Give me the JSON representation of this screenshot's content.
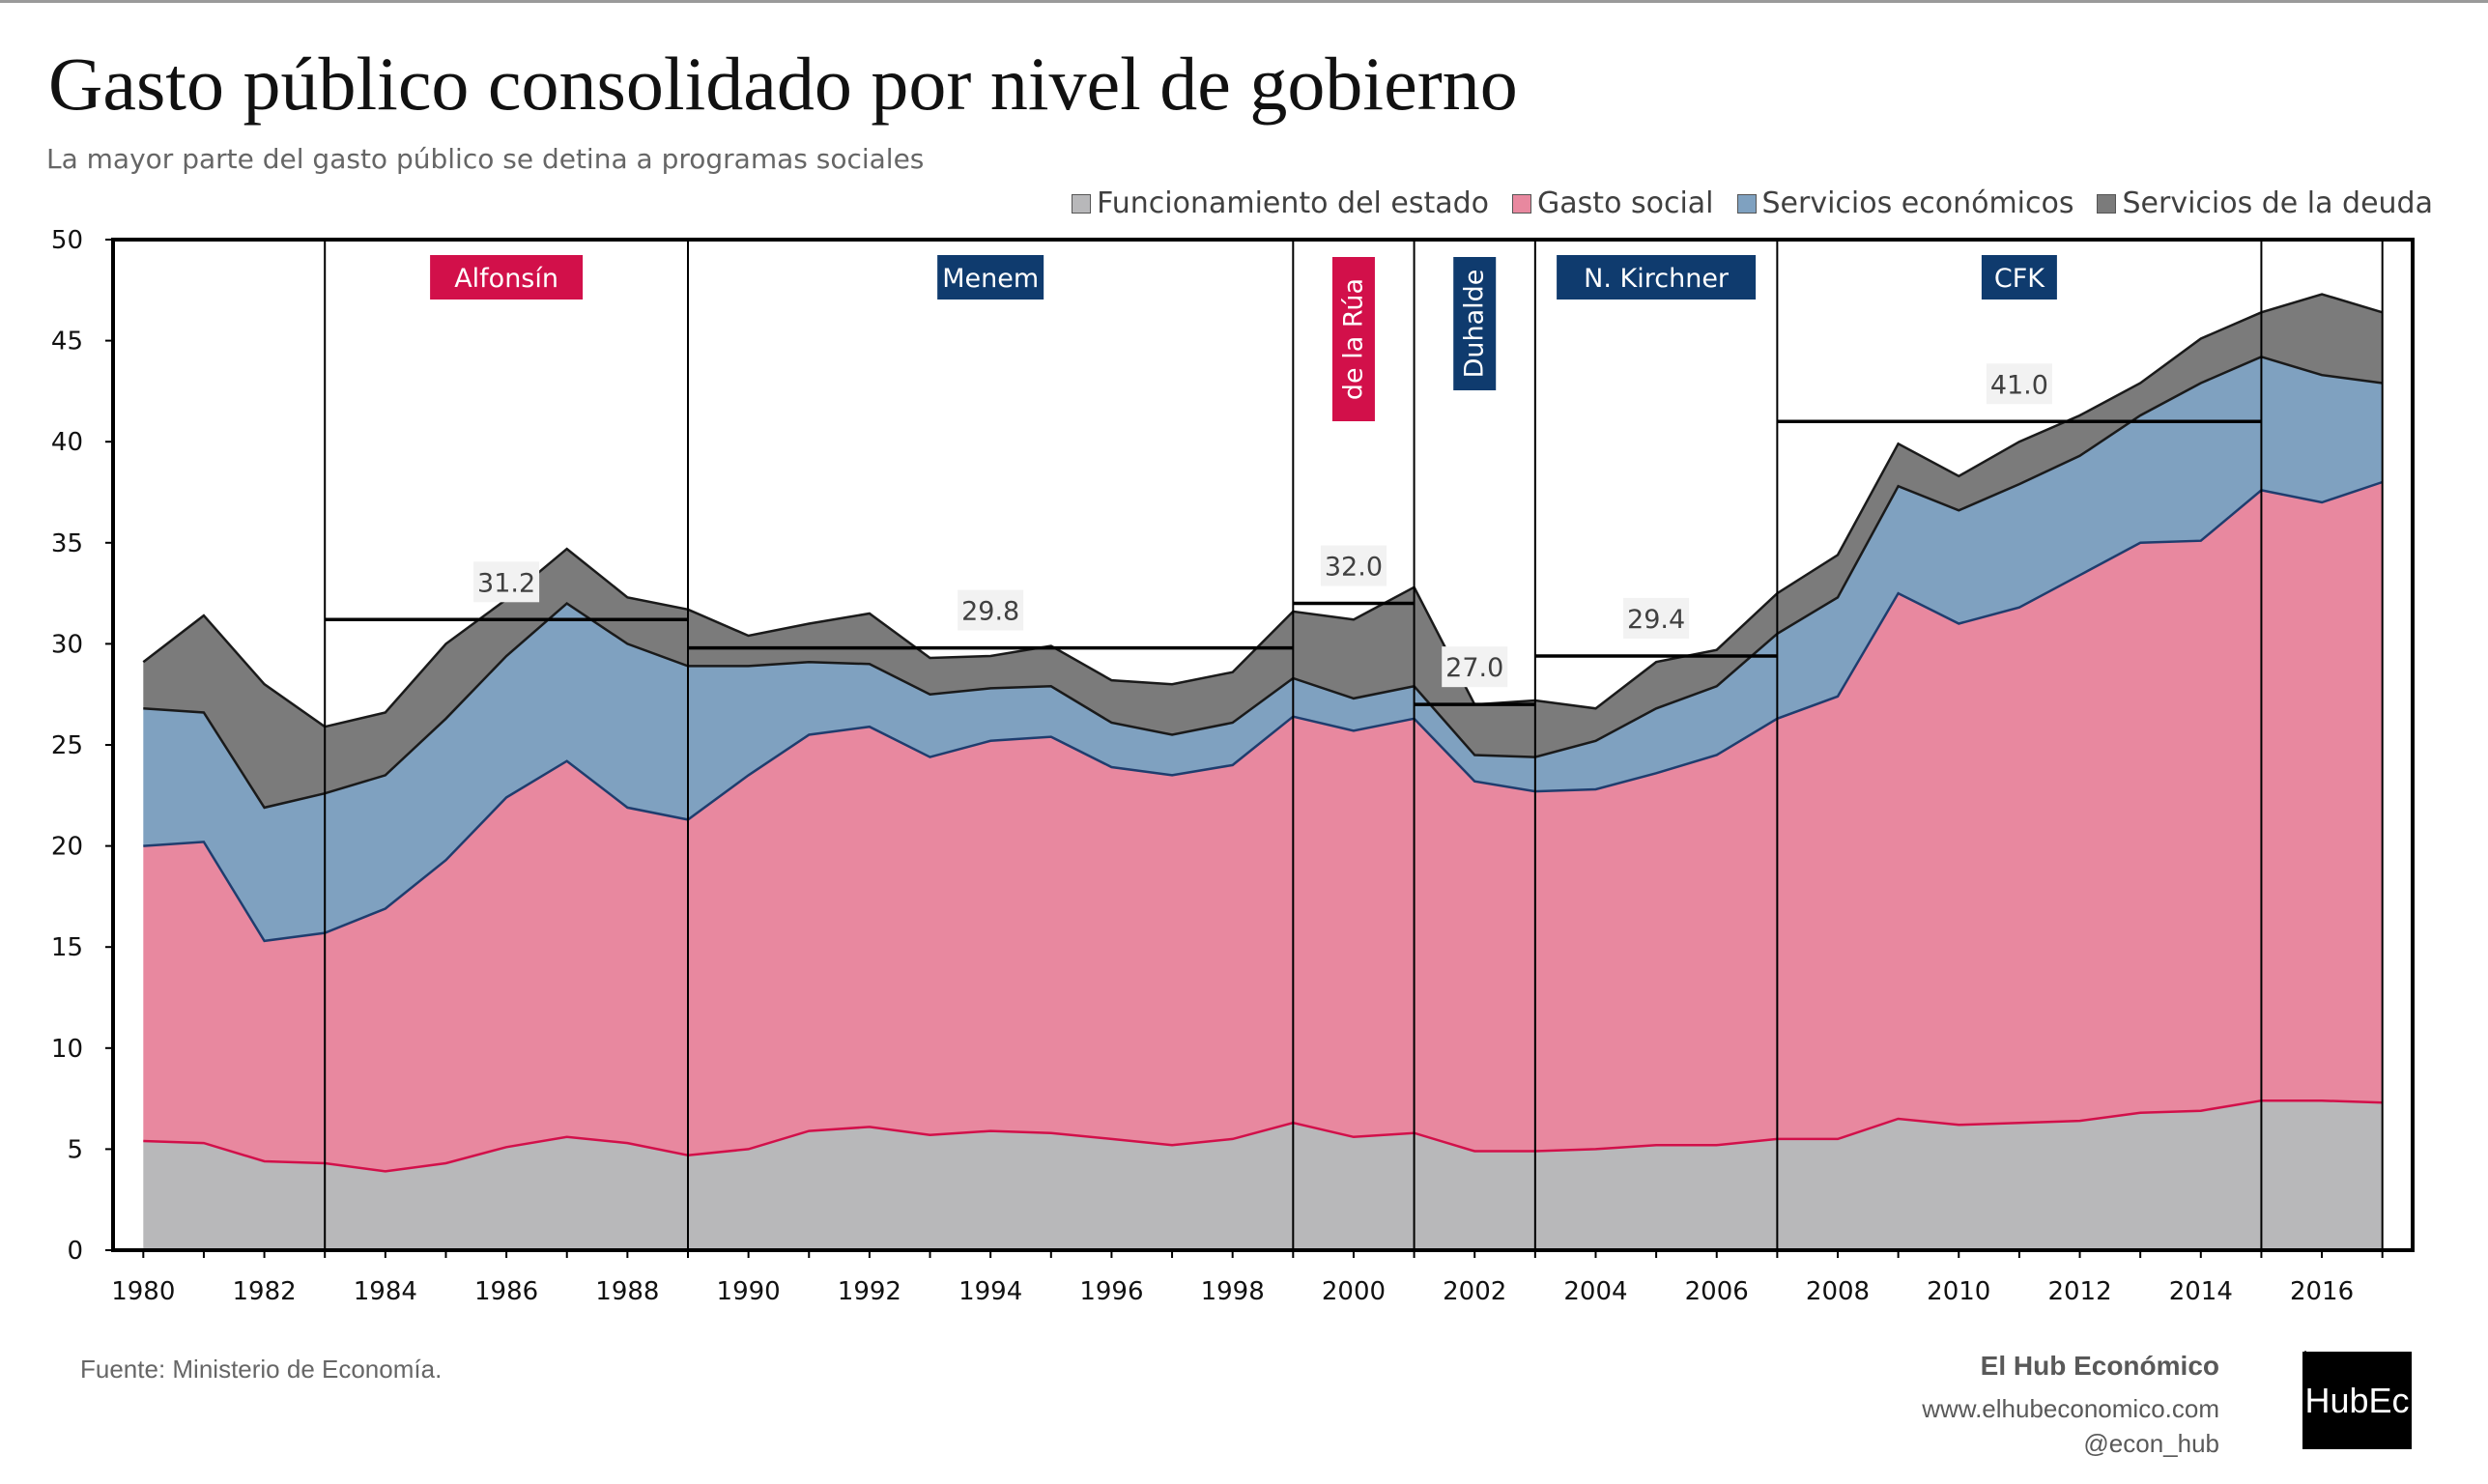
{
  "header": {
    "title": "Gasto público consolidado por nivel de gobierno",
    "subtitle": "La mayor parte del gasto público se detina a programas sociales"
  },
  "legend": [
    {
      "label": "Funcionamiento del estado",
      "color": "#b8b8ba"
    },
    {
      "label": "Gasto social",
      "color": "#e8889f"
    },
    {
      "label": "Servicios económicos",
      "color": "#7fa1c0"
    },
    {
      "label": "Servicios de la deuda",
      "color": "#7b7b7b"
    }
  ],
  "chart_data": {
    "type": "area",
    "stacked": true,
    "x": [
      1980,
      1981,
      1982,
      1983,
      1984,
      1985,
      1986,
      1987,
      1988,
      1989,
      1990,
      1991,
      1992,
      1993,
      1994,
      1995,
      1996,
      1997,
      1998,
      1999,
      2000,
      2001,
      2002,
      2003,
      2004,
      2005,
      2006,
      2007,
      2008,
      2009,
      2010,
      2011,
      2012,
      2013,
      2014,
      2015,
      2016,
      2017
    ],
    "x_tick_labels": [
      "1980",
      "1982",
      "1984",
      "1986",
      "1988",
      "1990",
      "1992",
      "1994",
      "1996",
      "1998",
      "2000",
      "2002",
      "2004",
      "2006",
      "2008",
      "2010",
      "2012",
      "2014",
      "2016"
    ],
    "y_tick_labels": [
      "0",
      "5",
      "10",
      "15",
      "20",
      "25",
      "30",
      "35",
      "40",
      "45",
      "50"
    ],
    "ylim": [
      0,
      50
    ],
    "xlim": [
      1979.5,
      2017.5
    ],
    "series": [
      {
        "name": "Funcionamiento del estado",
        "color": "#b8b8ba",
        "line_color": "#d2104a",
        "values": [
          5.4,
          5.3,
          4.4,
          4.3,
          3.9,
          4.3,
          5.1,
          5.6,
          5.3,
          4.7,
          5.0,
          5.9,
          6.1,
          5.7,
          5.9,
          5.8,
          5.5,
          5.2,
          5.5,
          6.3,
          5.6,
          5.8,
          4.9,
          4.9,
          5.0,
          5.2,
          5.2,
          5.5,
          5.5,
          6.5,
          6.2,
          6.3,
          6.4,
          6.8,
          6.9,
          7.4,
          7.4,
          7.3
        ]
      },
      {
        "name": "Gasto social",
        "color": "#e8889f",
        "line_color": "#1f3d6e",
        "values": [
          14.6,
          14.9,
          10.9,
          11.4,
          13.0,
          15.0,
          17.3,
          18.6,
          16.6,
          16.6,
          18.5,
          19.6,
          19.8,
          18.7,
          19.3,
          19.6,
          18.4,
          18.3,
          18.5,
          20.1,
          20.1,
          20.5,
          18.3,
          17.8,
          17.8,
          18.4,
          19.3,
          20.8,
          21.9,
          26.0,
          24.8,
          25.5,
          27.0,
          28.2,
          28.2,
          30.2,
          29.6,
          30.7
        ]
      },
      {
        "name": "Servicios económicos",
        "color": "#7fa1c0",
        "line_color": "#1a1a1a",
        "values": [
          6.8,
          6.4,
          6.6,
          6.9,
          6.6,
          7.0,
          7.0,
          7.8,
          8.1,
          7.6,
          5.4,
          3.6,
          3.1,
          3.1,
          2.6,
          2.5,
          2.2,
          2.0,
          2.1,
          1.9,
          1.6,
          1.6,
          1.3,
          1.7,
          2.4,
          3.2,
          3.4,
          4.2,
          4.9,
          5.3,
          5.6,
          6.1,
          5.9,
          6.3,
          7.8,
          6.6,
          6.3,
          4.9
        ]
      },
      {
        "name": "Servicios de la deuda",
        "color": "#7b7b7b",
        "line_color": "#1a1a1a",
        "values": [
          2.3,
          4.8,
          6.1,
          3.3,
          3.1,
          3.7,
          2.8,
          2.7,
          2.3,
          2.8,
          1.5,
          1.9,
          2.5,
          1.8,
          1.6,
          2.0,
          2.1,
          2.5,
          2.5,
          3.3,
          3.9,
          4.9,
          2.5,
          2.8,
          1.6,
          2.3,
          1.8,
          2.0,
          2.1,
          2.1,
          1.7,
          2.1,
          2.0,
          1.6,
          2.2,
          2.2,
          4.0,
          3.5
        ]
      }
    ],
    "vertical_lines": [
      1983,
      1989,
      1999,
      2001,
      2003,
      2007,
      2015,
      2017
    ],
    "periods": [
      {
        "label": "Alfonsín",
        "x_center": 1986,
        "color": "#d2104a",
        "vertical": false
      },
      {
        "label": "Menem",
        "x_center": 1994,
        "color": "#0f3b6e",
        "vertical": false
      },
      {
        "label": "de la Rúa",
        "x_center": 2000,
        "color": "#d2104a",
        "vertical": true
      },
      {
        "label": "Duhalde",
        "x_center": 2002,
        "color": "#0f3b6e",
        "vertical": true
      },
      {
        "label": "N. Kirchner",
        "x_center": 2005,
        "color": "#0f3b6e",
        "vertical": false
      },
      {
        "label": "CFK",
        "x_center": 2011,
        "color": "#0f3b6e",
        "vertical": false
      }
    ],
    "averages": [
      {
        "label": "31.2",
        "value": 31.2,
        "x_start": 1983,
        "x_end": 1989
      },
      {
        "label": "29.8",
        "value": 29.8,
        "x_start": 1989,
        "x_end": 1999
      },
      {
        "label": "32.0",
        "value": 32.0,
        "x_start": 1999,
        "x_end": 2001
      },
      {
        "label": "27.0",
        "value": 27.0,
        "x_start": 2001,
        "x_end": 2003
      },
      {
        "label": "29.4",
        "value": 29.4,
        "x_start": 2003,
        "x_end": 2007
      },
      {
        "label": "41.0",
        "value": 41.0,
        "x_start": 2007,
        "x_end": 2015
      }
    ]
  },
  "footer": {
    "source": "Fuente: Ministerio de Economía.",
    "brand_name": "El Hub Económico",
    "website": "www.elhubeconomico.com",
    "handle": "@econ_hub",
    "logo_text": "HubEc"
  }
}
